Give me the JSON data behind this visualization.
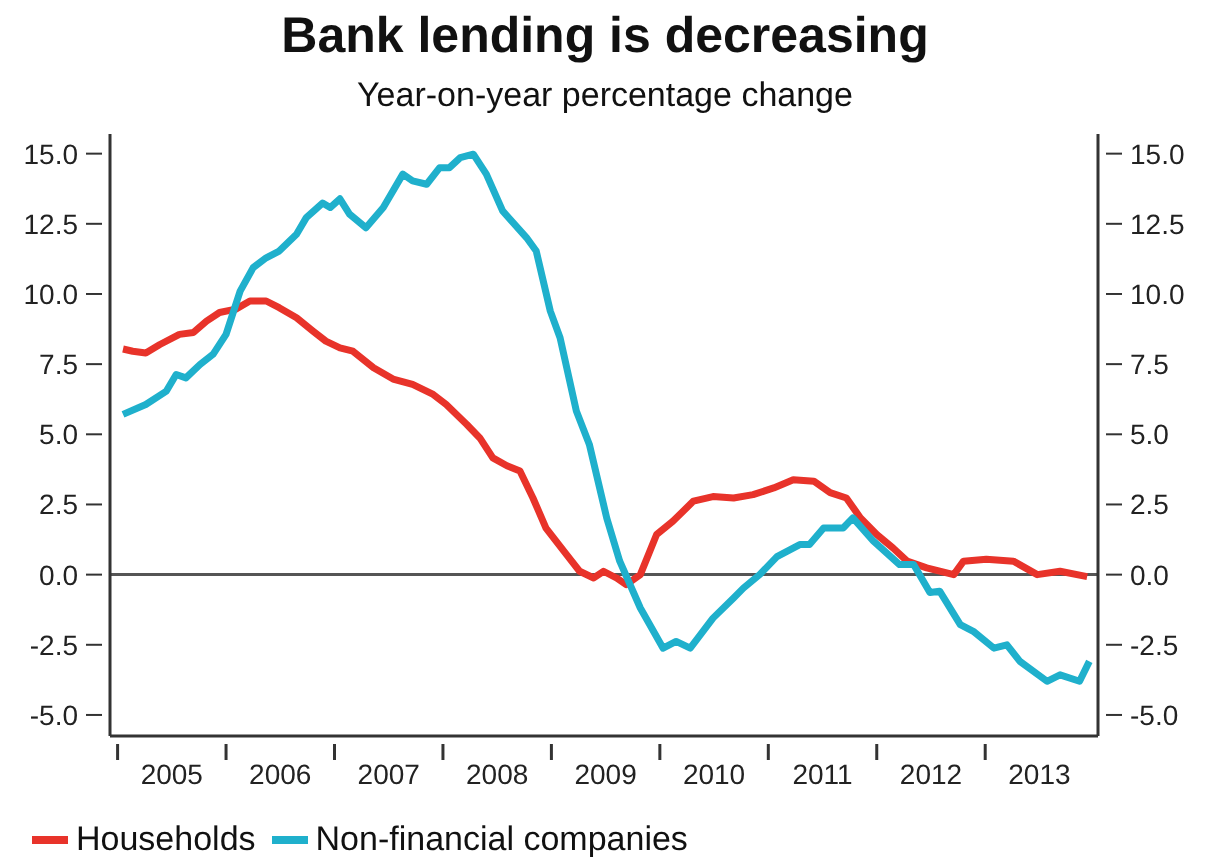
{
  "chart_data": {
    "type": "line",
    "title": "Bank lending is decreasing",
    "subtitle": "Year-on-year percentage change",
    "xlim": [
      2004.93,
      2014.04
    ],
    "xticks": [
      {
        "value": 2005,
        "label": null
      },
      {
        "value": 2005.5,
        "label": "2005"
      },
      {
        "value": 2006,
        "label": null
      },
      {
        "value": 2006.5,
        "label": "2006"
      },
      {
        "value": 2007,
        "label": null
      },
      {
        "value": 2007.5,
        "label": "2007"
      },
      {
        "value": 2008,
        "label": null
      },
      {
        "value": 2008.5,
        "label": "2008"
      },
      {
        "value": 2009,
        "label": null
      },
      {
        "value": 2009.5,
        "label": "2009"
      },
      {
        "value": 2010,
        "label": null
      },
      {
        "value": 2010.5,
        "label": "2010"
      },
      {
        "value": 2011,
        "label": null
      },
      {
        "value": 2011.5,
        "label": "2011"
      },
      {
        "value": 2012,
        "label": null
      },
      {
        "value": 2012.5,
        "label": "2012"
      },
      {
        "value": 2013,
        "label": null
      },
      {
        "value": 2013.5,
        "label": "2013"
      }
    ],
    "ylim": [
      -5.75,
      15.7
    ],
    "yticks": [
      {
        "value": -5,
        "label": "-5.0"
      },
      {
        "value": -2.5,
        "label": "-2.5"
      },
      {
        "value": 0,
        "label": "0.0"
      },
      {
        "value": 2.5,
        "label": "2.5"
      },
      {
        "value": 5,
        "label": "5.0"
      },
      {
        "value": 7.5,
        "label": "7.5"
      },
      {
        "value": 10,
        "label": "10.0"
      },
      {
        "value": 12.5,
        "label": "12.5"
      },
      {
        "value": 15,
        "label": "15.0"
      }
    ],
    "y2lim": [
      -5.75,
      15.7
    ],
    "y2ticks": [
      {
        "value": -5,
        "label": "-5.0"
      },
      {
        "value": -2.5,
        "label": "-2.5"
      },
      {
        "value": 0,
        "label": "0.0"
      },
      {
        "value": 2.5,
        "label": "2.5"
      },
      {
        "value": 5,
        "label": "5.0"
      },
      {
        "value": 7.5,
        "label": "7.5"
      },
      {
        "value": 10,
        "label": "10.0"
      },
      {
        "value": 12.5,
        "label": "12.5"
      },
      {
        "value": 15,
        "label": "15.0"
      }
    ],
    "ref_lines": [
      {
        "axis": "y",
        "value": 0,
        "color": "#555555"
      }
    ],
    "grid": false,
    "legend": "bottom left",
    "marker": "none",
    "line_style": "solid",
    "series": [
      {
        "name": "Households",
        "color": "#e8332a",
        "x": [
          2005.05,
          2005.14,
          2005.26,
          2005.39,
          2005.57,
          2005.7,
          2005.82,
          2005.94,
          2006.09,
          2006.22,
          2006.37,
          2006.49,
          2006.65,
          2006.8,
          2006.92,
          2007.05,
          2007.17,
          2007.36,
          2007.54,
          2007.72,
          2007.91,
          2008.03,
          2008.22,
          2008.34,
          2008.46,
          2008.59,
          2008.71,
          2008.83,
          2008.95,
          2009.14,
          2009.26,
          2009.39,
          2009.48,
          2009.6,
          2009.69,
          2009.82,
          2009.97,
          2010.12,
          2010.31,
          2010.49,
          2010.68,
          2010.86,
          2011.05,
          2011.23,
          2011.42,
          2011.57,
          2011.72,
          2011.85,
          2012.0,
          2012.15,
          2012.28,
          2012.46,
          2012.71,
          2012.8,
          2013.01,
          2013.26,
          2013.48,
          2013.69,
          2013.94
        ],
        "values": [
          8.04,
          7.96,
          7.9,
          8.2,
          8.56,
          8.63,
          9.03,
          9.34,
          9.46,
          9.75,
          9.75,
          9.51,
          9.15,
          8.68,
          8.32,
          8.08,
          7.96,
          7.37,
          6.97,
          6.78,
          6.42,
          6.06,
          5.35,
          4.87,
          4.16,
          3.88,
          3.69,
          2.73,
          1.66,
          0.71,
          0.12,
          -0.12,
          0.12,
          -0.12,
          -0.36,
          0,
          1.43,
          1.9,
          2.62,
          2.78,
          2.73,
          2.85,
          3.09,
          3.38,
          3.33,
          2.92,
          2.73,
          2.02,
          1.43,
          0.95,
          0.48,
          0.24,
          0,
          0.48,
          0.55,
          0.48,
          0,
          0.12,
          -0.07
        ]
      },
      {
        "name": "Non-financial companies",
        "color": "#1fb0cc",
        "x": [
          2005.05,
          2005.26,
          2005.45,
          2005.54,
          2005.63,
          2005.76,
          2005.88,
          2006.0,
          2006.13,
          2006.25,
          2006.37,
          2006.49,
          2006.65,
          2006.74,
          2006.89,
          2006.96,
          2007.05,
          2007.14,
          2007.29,
          2007.45,
          2007.63,
          2007.72,
          2007.85,
          2007.97,
          2008.06,
          2008.16,
          2008.28,
          2008.4,
          2008.55,
          2008.77,
          2008.86,
          2008.99,
          2009.08,
          2009.23,
          2009.35,
          2009.51,
          2009.63,
          2009.82,
          2010.03,
          2010.15,
          2010.28,
          2010.49,
          2010.68,
          2010.77,
          2010.92,
          2011.08,
          2011.29,
          2011.38,
          2011.51,
          2011.69,
          2011.78,
          2011.97,
          2012.21,
          2012.34,
          2012.49,
          2012.58,
          2012.77,
          2012.89,
          2013.08,
          2013.2,
          2013.32,
          2013.57,
          2013.69,
          2013.87,
          2013.96
        ],
        "values": [
          5.71,
          6.06,
          6.54,
          7.13,
          7.01,
          7.49,
          7.85,
          8.56,
          10.1,
          10.94,
          11.29,
          11.53,
          12.13,
          12.72,
          13.24,
          13.08,
          13.39,
          12.84,
          12.36,
          13.08,
          14.27,
          14.03,
          13.91,
          14.5,
          14.5,
          14.86,
          14.98,
          14.27,
          12.96,
          12.01,
          11.53,
          9.39,
          8.44,
          5.83,
          4.64,
          2.02,
          0.48,
          -1.19,
          -2.62,
          -2.38,
          -2.62,
          -1.55,
          -0.83,
          -0.48,
          0,
          0.64,
          1.07,
          1.07,
          1.66,
          1.66,
          2.02,
          1.19,
          0.36,
          0.36,
          -0.64,
          -0.59,
          -1.78,
          -2.02,
          -2.62,
          -2.5,
          -3.09,
          -3.8,
          -3.57,
          -3.8,
          -3.09
        ]
      }
    ]
  }
}
